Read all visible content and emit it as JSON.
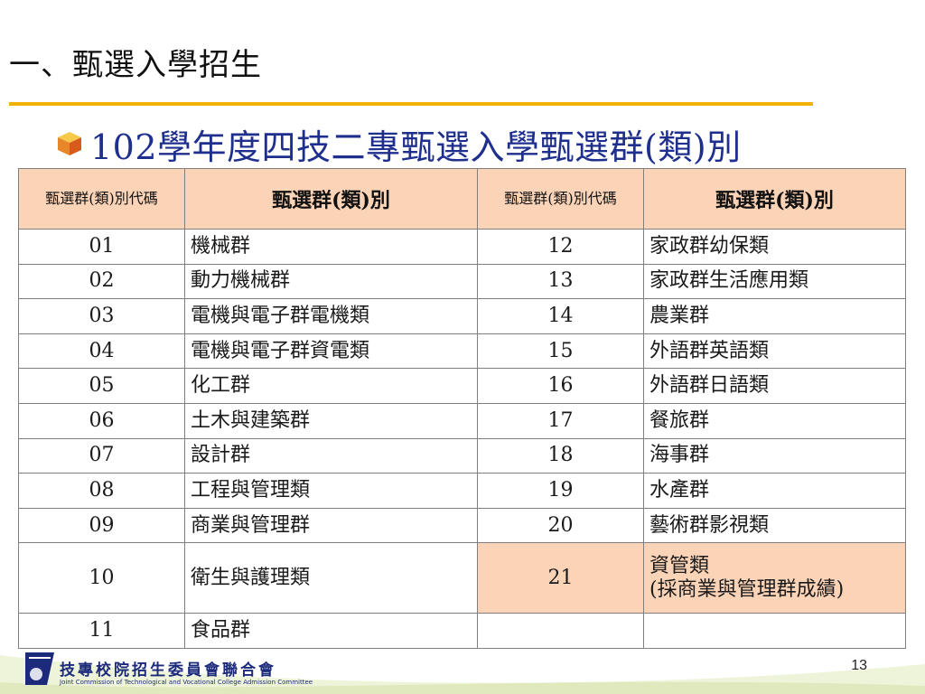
{
  "slide": {
    "title": "一、甄選入學招生",
    "subtitle": "102學年度四技二專甄選入學甄選群(類)別",
    "page_number": "13"
  },
  "table": {
    "headers": {
      "code": "甄選群(類)別代碼",
      "name": "甄選群(類)別"
    },
    "rows": [
      {
        "code1": "01",
        "name1": "機械群",
        "code2": "12",
        "name2": "家政群幼保類"
      },
      {
        "code1": "02",
        "name1": "動力機械群",
        "code2": "13",
        "name2": "家政群生活應用類"
      },
      {
        "code1": "03",
        "name1": "電機與電子群電機類",
        "code2": "14",
        "name2": "農業群"
      },
      {
        "code1": "04",
        "name1": "電機與電子群資電類",
        "code2": "15",
        "name2": "外語群英語類"
      },
      {
        "code1": "05",
        "name1": "化工群",
        "code2": "16",
        "name2": "外語群日語類"
      },
      {
        "code1": "06",
        "name1": "土木與建築群",
        "code2": "17",
        "name2": "餐旅群"
      },
      {
        "code1": "07",
        "name1": "設計群",
        "code2": "18",
        "name2": "海事群"
      },
      {
        "code1": "08",
        "name1": "工程與管理類",
        "code2": "19",
        "name2": "水產群"
      },
      {
        "code1": "09",
        "name1": "商業與管理群",
        "code2": "20",
        "name2": "藝術群影視類"
      },
      {
        "code1": "10",
        "name1": "衛生與護理類",
        "code2": "21",
        "name2_line1": "資管類",
        "name2_line2": "(採商業與管理群成績)"
      },
      {
        "code1": "11",
        "name1": "食品群",
        "code2": "",
        "name2": ""
      }
    ]
  },
  "footer": {
    "org_name": "技專校院招生委員會聯合會",
    "org_name_en": "Joint Commission of Technological and Vocational College Admission Committee"
  },
  "colors": {
    "accent_rule": "#f0b400",
    "subtitle": "#1e2f8e",
    "header_fill": "#fbd3b6",
    "footer_text": "#1b2a7a"
  }
}
